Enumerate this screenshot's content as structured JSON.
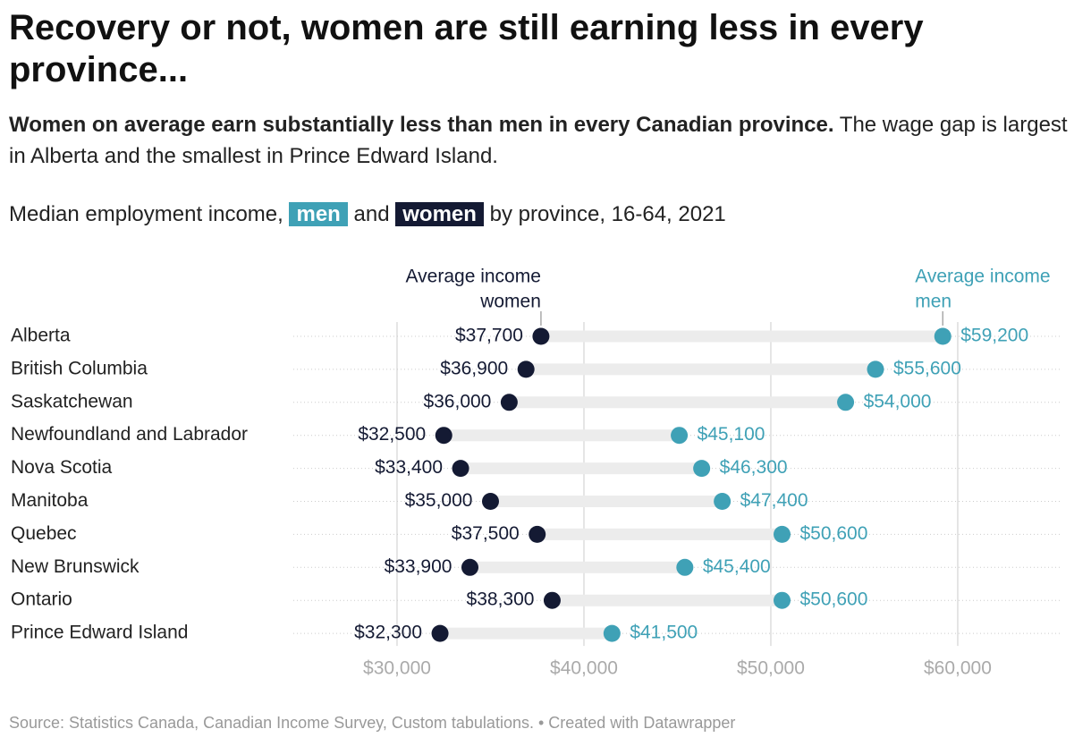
{
  "chart_data": {
    "type": "range-dot",
    "title": "Recovery or not, women are still earning less in every province...",
    "subtitle": {
      "bold": "Women on average earn substantially less than men in every Canadian province.",
      "text": "The wage gap is largest in Alberta and the smallest in Prince Edward Island."
    },
    "description": {
      "prefix": "Median employment income,",
      "joiner": "and",
      "suffix": "by province, 16-64, 2021"
    },
    "categories": [
      "Alberta",
      "British Columbia",
      "Saskatchewan",
      "Newfoundland and Labrador",
      "Nova Scotia",
      "Manitoba",
      "Quebec",
      "New Brunswick",
      "Ontario",
      "Prince Edward Island"
    ],
    "series": [
      {
        "name": "men",
        "color": "#3fa1b6",
        "values": [
          59200,
          55600,
          54000,
          45100,
          46300,
          47400,
          50600,
          45400,
          50600,
          41500
        ],
        "value_labels": [
          "$59,200",
          "$55,600",
          "$54,000",
          "$45,100",
          "$46,300",
          "$47,400",
          "$50,600",
          "$45,400",
          "$50,600",
          "$41,500"
        ]
      },
      {
        "name": "women",
        "color": "#141a33",
        "values": [
          37700,
          36900,
          36000,
          32500,
          33400,
          35000,
          37500,
          33900,
          38300,
          32300
        ],
        "value_labels": [
          "$37,700",
          "$36,900",
          "$36,000",
          "$32,500",
          "$33,400",
          "$35,000",
          "$37,500",
          "$33,900",
          "$38,300",
          "$32,300"
        ]
      }
    ],
    "annotations": [
      {
        "series": 1,
        "lines": [
          "Average income",
          "women"
        ]
      },
      {
        "series": 0,
        "lines": [
          "Average income",
          "men"
        ]
      }
    ],
    "xlim": [
      24450,
      65600
    ],
    "xticks": [
      {
        "value": 30000,
        "label": "$30,000"
      },
      {
        "value": 40000,
        "label": "$40,000"
      },
      {
        "value": 50000,
        "label": "$50,000"
      },
      {
        "value": 60000,
        "label": "$60,000"
      }
    ],
    "grid": true,
    "source": "Source: Statistics Canada, Canadian Income Survey, Custom tabulations. • Created with Datawrapper"
  }
}
